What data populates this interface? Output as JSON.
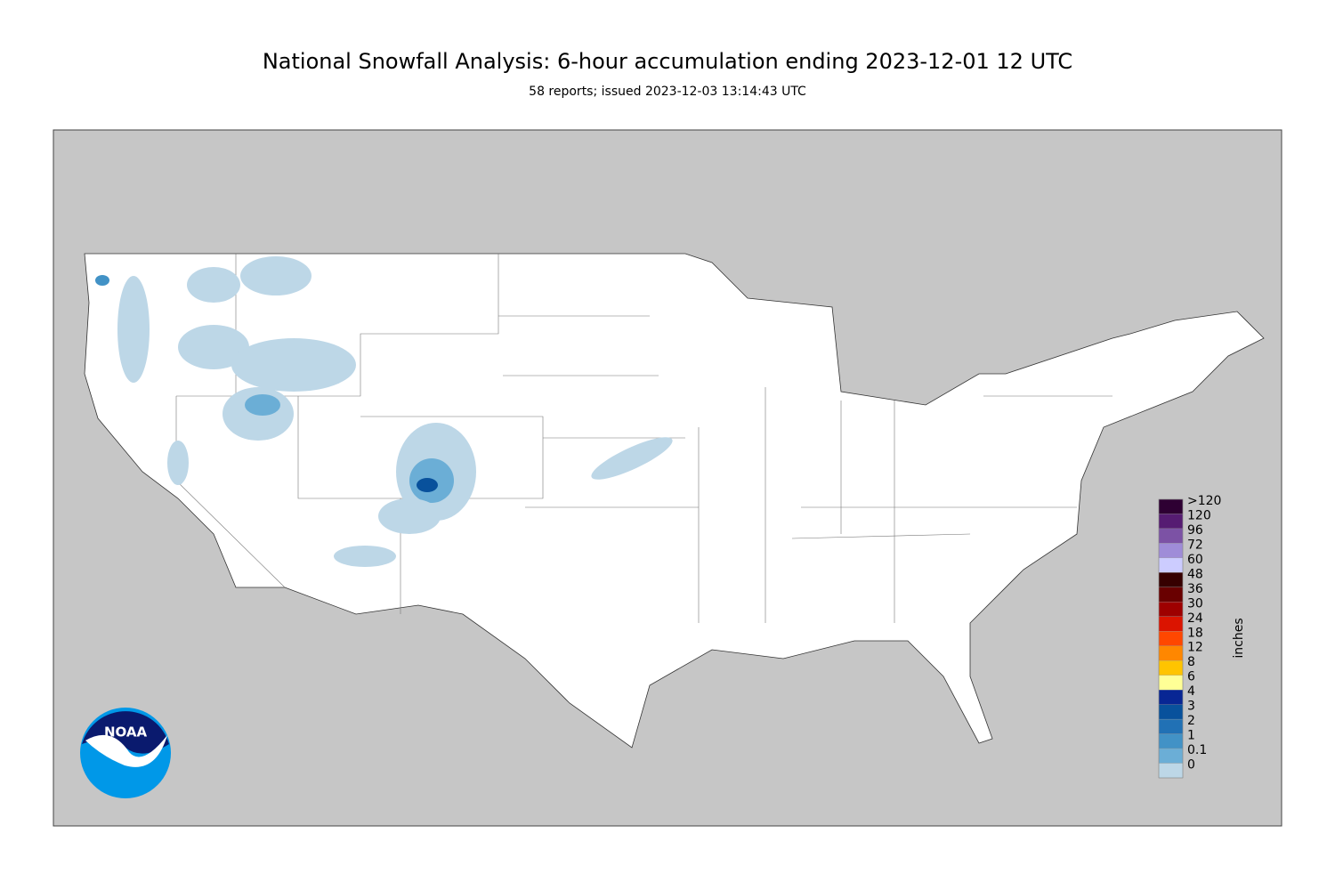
{
  "header": {
    "title": "National Snowfall Analysis: 6-hour accumulation ending 2023-12-01 12 UTC",
    "subtitle": "58 reports; issued 2023-12-03 13:14:43 UTC"
  },
  "logo": {
    "text": "NOAA"
  },
  "legend": {
    "label": "inches",
    "items": [
      {
        "label": ">120",
        "color": "#2e0033"
      },
      {
        "label": "120",
        "color": "#561c72"
      },
      {
        "label": "96",
        "color": "#7c52a5"
      },
      {
        "label": "72",
        "color": "#9f8cd8"
      },
      {
        "label": "60",
        "color": "#ccccff"
      },
      {
        "label": "48",
        "color": "#360000"
      },
      {
        "label": "36",
        "color": "#690000"
      },
      {
        "label": "30",
        "color": "#9e0000"
      },
      {
        "label": "24",
        "color": "#db1400"
      },
      {
        "label": "18",
        "color": "#ff4700"
      },
      {
        "label": "12",
        "color": "#ff8700"
      },
      {
        "label": "8",
        "color": "#ffc400"
      },
      {
        "label": "6",
        "color": "#ffff96"
      },
      {
        "label": "4",
        "color": "#082694"
      },
      {
        "label": "3",
        "color": "#08519c"
      },
      {
        "label": "2",
        "color": "#2171b5"
      },
      {
        "label": "1",
        "color": "#4292c6"
      },
      {
        "label": "0.1",
        "color": "#6baed6"
      },
      {
        "label": "0",
        "color": "#bdd7e7"
      }
    ]
  }
}
